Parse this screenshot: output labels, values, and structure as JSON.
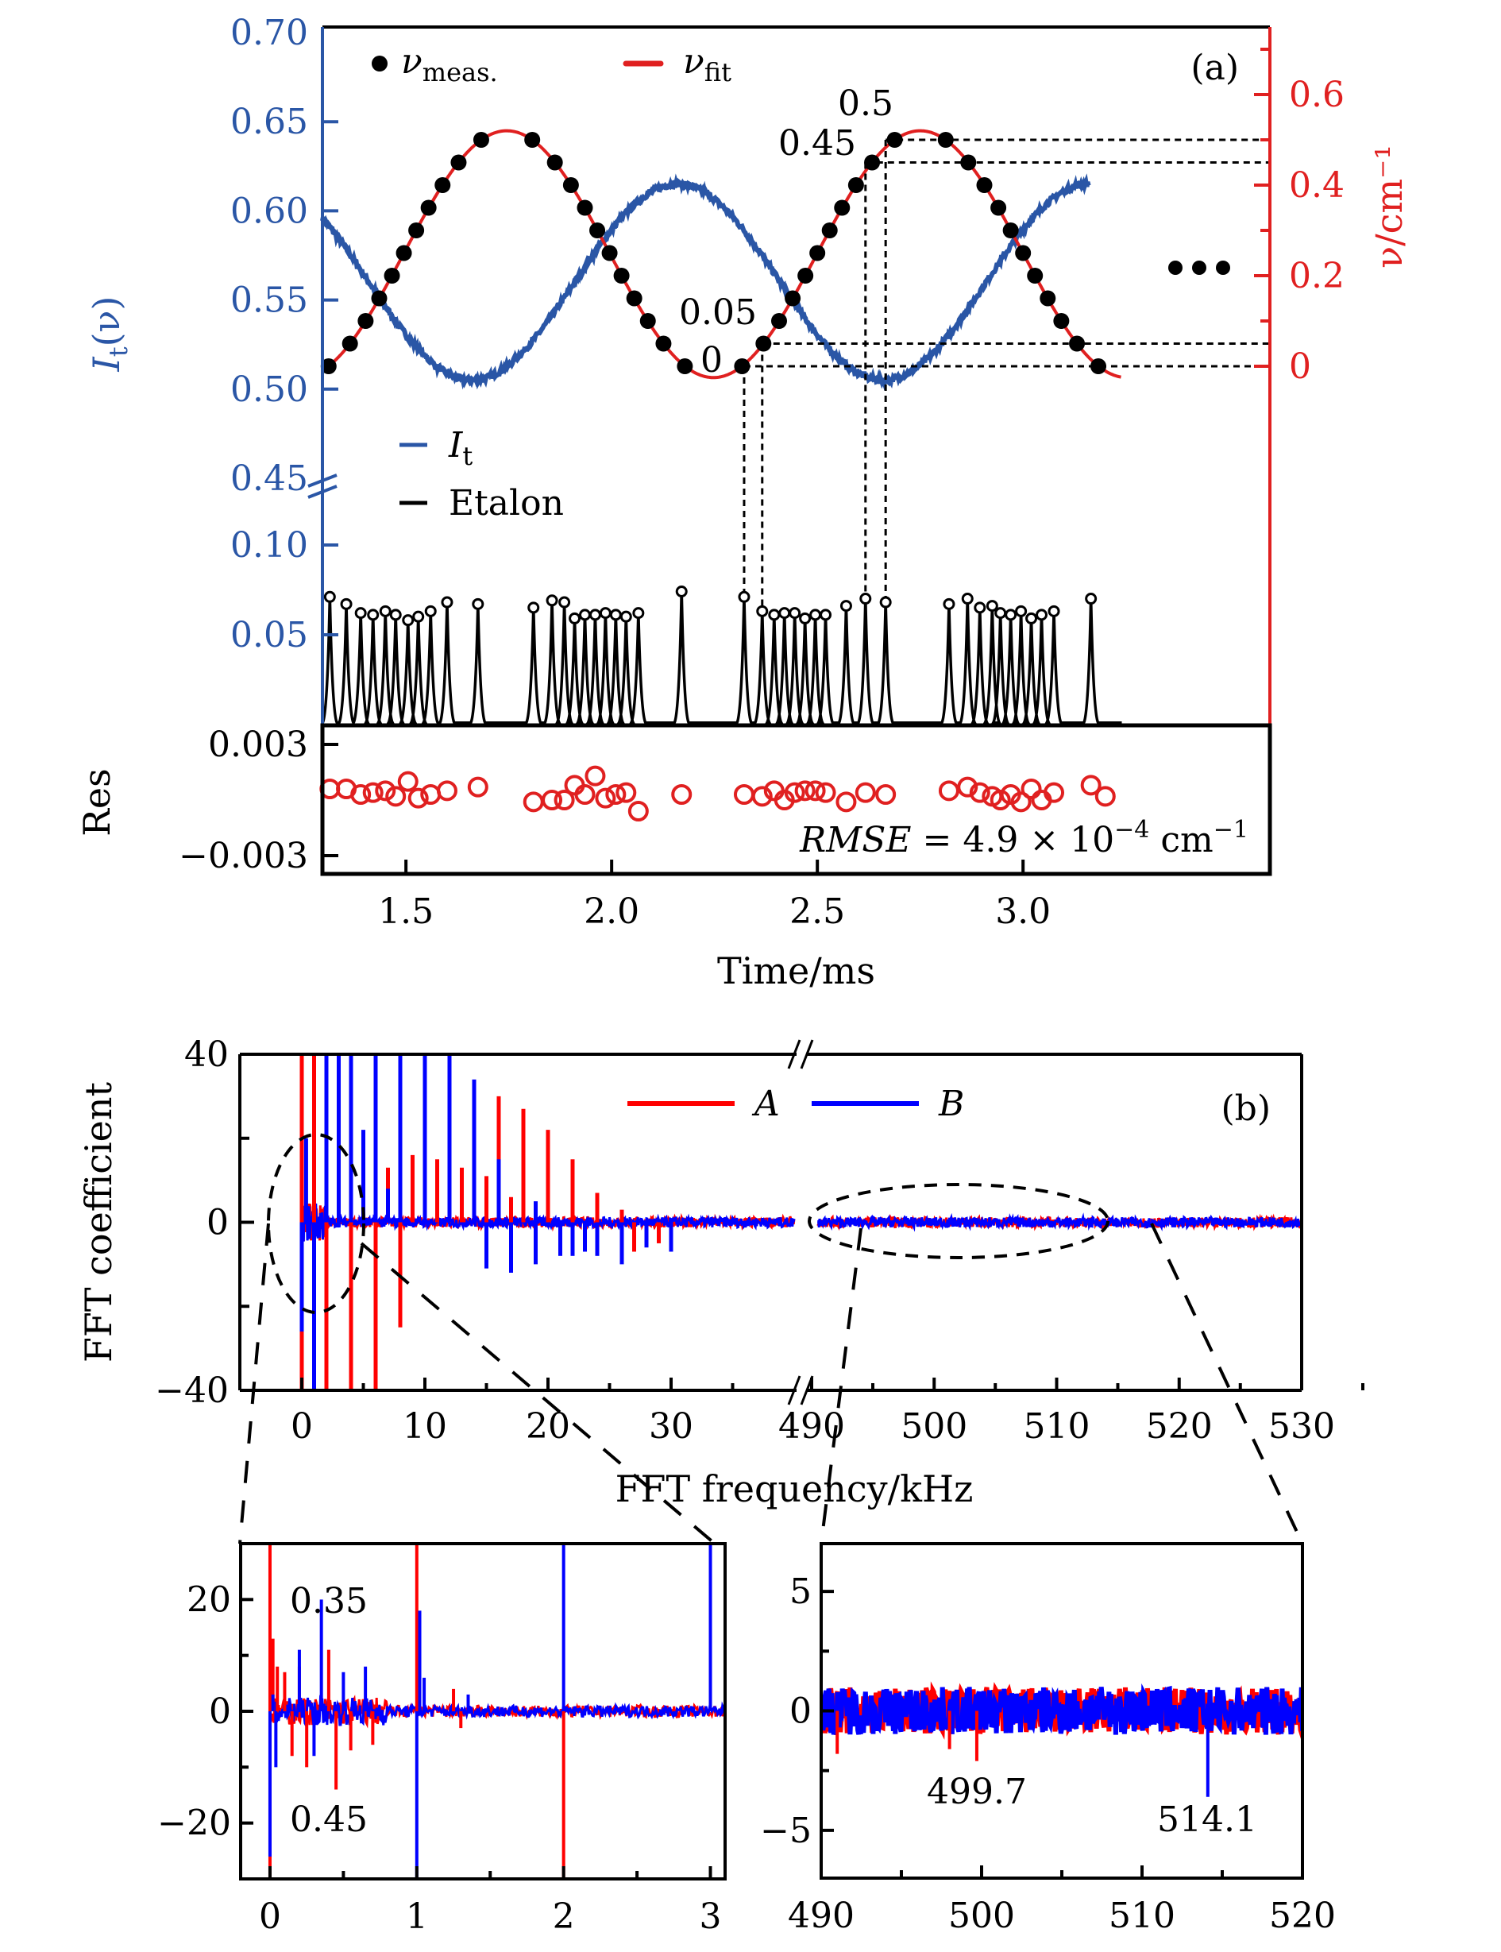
{
  "colors": {
    "intensity_blue": "#2a56a6",
    "fit_red": "#e02020",
    "series_a_red": "#ff0000",
    "series_b_blue": "#0000ff",
    "black": "#000000"
  },
  "chart_data": [
    {
      "id": "panel-a",
      "type": "line",
      "panel_label": "(a)",
      "xlabel": "Time/ms",
      "xlim": [
        1.297,
        3.6
      ],
      "xticks": [
        1.5,
        2.0,
        2.5,
        3.0
      ],
      "xtick_labels": [
        "1.5",
        "2.0",
        "2.5",
        "3.0"
      ],
      "left_axis": {
        "label": "I_t(ν)",
        "label_main": "I",
        "label_sub": "t",
        "label_tail": "(ν)",
        "upper_ylim": [
          0.45,
          0.7
        ],
        "upper_ticks": [
          0.45,
          0.5,
          0.55,
          0.6,
          0.65,
          0.7
        ],
        "upper_tick_labels": [
          "0.45",
          "0.50",
          "0.55",
          "0.60",
          "0.65",
          "0.70"
        ],
        "lower_ylim": [
          0,
          0.12
        ],
        "lower_ticks": [
          0.05,
          0.1
        ],
        "lower_tick_labels": [
          "0.05",
          "0.10"
        ],
        "axis_break_at": 0.45
      },
      "right_axis": {
        "label": "ν/cm⁻¹",
        "ylim": [
          -0.04,
          0.74
        ],
        "ticks": [
          0,
          0.2,
          0.4,
          0.6
        ],
        "minor_ticks": [
          0.1,
          0.3,
          0.5,
          0.7
        ],
        "tick_labels": [
          "0",
          "0.2",
          "0.4",
          "0.6"
        ]
      },
      "legend": [
        {
          "name": "ν_meas.",
          "main": "ν",
          "sub": "meas.",
          "marker": "filled-circle"
        },
        {
          "name": "ν_fit",
          "main": "ν",
          "sub": "fit",
          "marker": "red-line"
        },
        {
          "name": "I_t",
          "main": "I",
          "sub": "t",
          "marker": "blue-line"
        },
        {
          "name": "Etalon",
          "main": "Etalon",
          "sub": "",
          "marker": "black-line"
        }
      ],
      "series": [
        {
          "name": "I_t",
          "description": "transmitted intensity, sinusoidal",
          "x_range": [
            1.297,
            3.16
          ],
          "min_value": 0.505,
          "min_at": [
            1.66,
            2.66
          ],
          "max_value": 0.615,
          "max_at": [
            2.16,
            3.12
          ],
          "start_value": 0.59
        },
        {
          "name": "ν_fit",
          "description": "fitted relative wavenumber, sinusoidal",
          "x_range": [
            1.297,
            3.24
          ],
          "max_value": 0.52,
          "max_at": [
            1.74,
            2.75
          ],
          "min_value": -0.025,
          "min_at": [
            2.25
          ]
        },
        {
          "name": "ν_meas.",
          "description": "measured points at etalon peaks, 0.05 cm-1 spacing",
          "step": 0.05,
          "groups": [
            {
              "t_start": 1.315,
              "t_end": 1.675,
              "nu_start": 0.0,
              "nu_end": 0.5
            },
            {
              "t_start": 1.81,
              "t_end": 2.17,
              "nu_start": 0.5,
              "nu_end": 0.0
            },
            {
              "t_start": 2.322,
              "t_end": 2.666,
              "nu_start": 0.0,
              "nu_end": 0.5
            },
            {
              "t_start": 2.82,
              "t_end": 3.165,
              "nu_start": 0.5,
              "nu_end": 0.0
            }
          ]
        },
        {
          "name": "Etalon",
          "description": "etalon transmission peaks",
          "peaks": [
            {
              "t": 1.315,
              "h": 0.072
            },
            {
              "t": 1.355,
              "h": 0.068
            },
            {
              "t": 1.39,
              "h": 0.063
            },
            {
              "t": 1.42,
              "h": 0.062
            },
            {
              "t": 1.45,
              "h": 0.064
            },
            {
              "t": 1.475,
              "h": 0.062
            },
            {
              "t": 1.505,
              "h": 0.059
            },
            {
              "t": 1.53,
              "h": 0.061
            },
            {
              "t": 1.56,
              "h": 0.064
            },
            {
              "t": 1.6,
              "h": 0.069
            },
            {
              "t": 1.675,
              "h": 0.068
            },
            {
              "t": 1.81,
              "h": 0.066
            },
            {
              "t": 1.855,
              "h": 0.07
            },
            {
              "t": 1.885,
              "h": 0.069
            },
            {
              "t": 1.91,
              "h": 0.06
            },
            {
              "t": 1.935,
              "h": 0.062
            },
            {
              "t": 1.96,
              "h": 0.062
            },
            {
              "t": 1.985,
              "h": 0.063
            },
            {
              "t": 2.01,
              "h": 0.062
            },
            {
              "t": 2.035,
              "h": 0.061
            },
            {
              "t": 2.065,
              "h": 0.063
            },
            {
              "t": 2.17,
              "h": 0.075
            },
            {
              "t": 2.322,
              "h": 0.072
            },
            {
              "t": 2.366,
              "h": 0.064
            },
            {
              "t": 2.395,
              "h": 0.062
            },
            {
              "t": 2.42,
              "h": 0.063
            },
            {
              "t": 2.445,
              "h": 0.063
            },
            {
              "t": 2.47,
              "h": 0.06
            },
            {
              "t": 2.495,
              "h": 0.062
            },
            {
              "t": 2.52,
              "h": 0.062
            },
            {
              "t": 2.57,
              "h": 0.067
            },
            {
              "t": 2.617,
              "h": 0.071
            },
            {
              "t": 2.666,
              "h": 0.069
            },
            {
              "t": 2.82,
              "h": 0.068
            },
            {
              "t": 2.865,
              "h": 0.071
            },
            {
              "t": 2.895,
              "h": 0.066
            },
            {
              "t": 2.925,
              "h": 0.067
            },
            {
              "t": 2.945,
              "h": 0.063
            },
            {
              "t": 2.97,
              "h": 0.062
            },
            {
              "t": 2.995,
              "h": 0.064
            },
            {
              "t": 3.02,
              "h": 0.06
            },
            {
              "t": 3.045,
              "h": 0.062
            },
            {
              "t": 3.075,
              "h": 0.064
            },
            {
              "t": 3.165,
              "h": 0.071
            }
          ]
        }
      ],
      "annotations": [
        {
          "text": "0.5",
          "t": 2.666,
          "nu": 0.5
        },
        {
          "text": "0.45",
          "t": 2.617,
          "nu": 0.45
        },
        {
          "text": "0.05",
          "t": 2.366,
          "nu": 0.05
        },
        {
          "text": "0",
          "t": 2.322,
          "nu": 0.0
        },
        {
          "text": "•••",
          "description": "continuation ellipsis"
        }
      ],
      "guide_lines": {
        "vertical_at_t": [
          2.322,
          2.366,
          2.617,
          2.666
        ],
        "horizontal_at_nu": [
          0.0,
          0.05,
          0.45,
          0.5
        ]
      },
      "residual_panel": {
        "ylabel": "Res",
        "ylim": [
          -0.0035,
          0.0035
        ],
        "ticks": [
          -0.003,
          0.003
        ],
        "tick_labels": [
          "−0.003",
          "0.003"
        ],
        "rmse_text": {
          "lhs": "RMSE",
          "eq": " = 4.9 × 10",
          "exp": "−4",
          "unit": " cm",
          "unit_exp": "−1"
        },
        "values": [
          0.0006,
          0.0006,
          0.0003,
          0.0004,
          0.0005,
          0.0002,
          0.001,
          0.0001,
          0.0003,
          0.0005,
          0.0007,
          -0.0001,
          0.0,
          0.0,
          0.0008,
          0.0003,
          0.0013,
          0.0001,
          0.0003,
          0.0004,
          -0.0006,
          0.0003,
          0.0003,
          0.0002,
          0.0005,
          0.0,
          0.0004,
          0.0005,
          0.0005,
          0.0004,
          -0.0001,
          0.0004,
          0.0003,
          0.0005,
          0.0007,
          0.0004,
          0.0002,
          0.0,
          0.0003,
          -0.0001,
          0.0006,
          0.0,
          0.0004,
          0.0008,
          0.0002
        ]
      }
    },
    {
      "id": "panel-b",
      "type": "line",
      "panel_label": "(b)",
      "xlabel": "FFT frequency/kHz",
      "ylabel": "FFT coefficient",
      "ylim": [
        -40,
        40
      ],
      "yticks": [
        -40,
        0,
        40
      ],
      "ytick_labels": [
        "−40",
        "0",
        "40"
      ],
      "minor_yticks": [
        -20,
        20
      ],
      "x_segments": [
        {
          "xlim": [
            -4,
            40
          ],
          "ticks": [
            0,
            10,
            20,
            30
          ],
          "tick_labels": [
            "0",
            "10",
            "20",
            "30"
          ]
        },
        {
          "xlim": [
            489,
            530
          ],
          "ticks": [
            490,
            500,
            510,
            520,
            530
          ],
          "tick_labels": [
            "490",
            "500",
            "510",
            "520",
            "530"
          ]
        }
      ],
      "legend": [
        {
          "name": "A",
          "color_key": "series_a_red"
        },
        {
          "name": "B",
          "color_key": "series_b_blue"
        }
      ],
      "series": [
        {
          "name": "A",
          "spikes": [
            {
              "f": 0.0,
              "v": 40
            },
            {
              "f": 0.0,
              "v": -40
            },
            {
              "f": 1.0,
              "v": 40
            },
            {
              "f": 2.0,
              "v": -40
            },
            {
              "f": 4.0,
              "v": -40
            },
            {
              "f": 6.0,
              "v": -40
            },
            {
              "f": 7.0,
              "v": 13
            },
            {
              "f": 8.0,
              "v": -25
            },
            {
              "f": 9.0,
              "v": 16
            },
            {
              "f": 11.0,
              "v": 15
            },
            {
              "f": 13.0,
              "v": 13
            },
            {
              "f": 15.0,
              "v": 11
            },
            {
              "f": 16.0,
              "v": 30
            },
            {
              "f": 17.0,
              "v": 6
            },
            {
              "f": 18.0,
              "v": 27
            },
            {
              "f": 20.0,
              "v": 22
            },
            {
              "f": 22.0,
              "v": 15
            },
            {
              "f": 24.0,
              "v": 7
            },
            {
              "f": 26.0,
              "v": 3
            },
            {
              "f": 27.0,
              "v": -7
            },
            {
              "f": 29.0,
              "v": -5
            }
          ]
        },
        {
          "name": "B",
          "spikes": [
            {
              "f": 0.0,
              "v": -26
            },
            {
              "f": 0.35,
              "v": 20
            },
            {
              "f": 1.0,
              "v": -40
            },
            {
              "f": 2.0,
              "v": 40
            },
            {
              "f": 3.0,
              "v": 40
            },
            {
              "f": 4.0,
              "v": 40
            },
            {
              "f": 5.0,
              "v": 22
            },
            {
              "f": 6.0,
              "v": 40
            },
            {
              "f": 7.0,
              "v": 8
            },
            {
              "f": 8.0,
              "v": 40
            },
            {
              "f": 10.0,
              "v": 40
            },
            {
              "f": 12.0,
              "v": 40
            },
            {
              "f": 14.0,
              "v": 34
            },
            {
              "f": 15.0,
              "v": -11
            },
            {
              "f": 16.0,
              "v": 15
            },
            {
              "f": 17.0,
              "v": -12
            },
            {
              "f": 19.0,
              "v": -10
            },
            {
              "f": 19.0,
              "v": 5
            },
            {
              "f": 21.0,
              "v": -8
            },
            {
              "f": 22.0,
              "v": -8
            },
            {
              "f": 23.0,
              "v": -7
            },
            {
              "f": 24.0,
              "v": -8
            },
            {
              "f": 26.0,
              "v": -10
            },
            {
              "f": 28.0,
              "v": -6
            },
            {
              "f": 30.0,
              "v": -7
            }
          ]
        }
      ],
      "noise_amplitude": 1.2,
      "zoom_regions": [
        {
          "f_center": 1.5,
          "v_center": 0,
          "description": "ellipse near 0–5 kHz"
        },
        {
          "f_center": 506,
          "v_center": 0,
          "description": "ellipse near 494–518 kHz"
        }
      ]
    },
    {
      "id": "inset-low",
      "type": "line",
      "xlim": [
        -0.2,
        3.1
      ],
      "ylim": [
        -30,
        30
      ],
      "xticks": [
        0,
        1,
        2,
        3
      ],
      "xtick_labels": [
        "0",
        "1",
        "2",
        "3"
      ],
      "minor_xticks": [
        0.5,
        1.5,
        2.5
      ],
      "yticks": [
        -20,
        0,
        20
      ],
      "ytick_labels": [
        "−20",
        "0",
        "20"
      ],
      "minor_yticks": [
        -10,
        10
      ],
      "annotations": [
        {
          "text": "0.35",
          "f": 0.35,
          "v": 20
        },
        {
          "text": "0.45",
          "f": 0.45,
          "v": -14
        }
      ],
      "series": [
        {
          "name": "A",
          "spikes": [
            {
              "f": 0.0,
              "v": 30
            },
            {
              "f": 0.0,
              "v": -30
            },
            {
              "f": 0.02,
              "v": 13
            },
            {
              "f": 0.05,
              "v": 8
            },
            {
              "f": 0.1,
              "v": 7
            },
            {
              "f": 0.15,
              "v": -8
            },
            {
              "f": 0.2,
              "v": 8
            },
            {
              "f": 0.25,
              "v": -10
            },
            {
              "f": 0.4,
              "v": 11
            },
            {
              "f": 0.45,
              "v": -14
            },
            {
              "f": 0.55,
              "v": -7
            },
            {
              "f": 0.7,
              "v": -6
            },
            {
              "f": 1.0,
              "v": 30
            },
            {
              "f": 1.25,
              "v": 4
            },
            {
              "f": 1.3,
              "v": -3
            },
            {
              "f": 2.0,
              "v": -30
            }
          ]
        },
        {
          "name": "B",
          "spikes": [
            {
              "f": 0.0,
              "v": -26
            },
            {
              "f": 0.02,
              "v": 3
            },
            {
              "f": 0.04,
              "v": -10
            },
            {
              "f": 0.2,
              "v": 11
            },
            {
              "f": 0.3,
              "v": -8
            },
            {
              "f": 0.35,
              "v": 20
            },
            {
              "f": 0.5,
              "v": 7
            },
            {
              "f": 0.65,
              "v": 8
            },
            {
              "f": 1.0,
              "v": -30
            },
            {
              "f": 1.02,
              "v": 18
            },
            {
              "f": 1.05,
              "v": 6
            },
            {
              "f": 1.35,
              "v": 3
            },
            {
              "f": 2.0,
              "v": 30
            },
            {
              "f": 3.0,
              "v": 30
            }
          ]
        }
      ]
    },
    {
      "id": "inset-high",
      "type": "line",
      "xlim": [
        490,
        520
      ],
      "ylim": [
        -7,
        7
      ],
      "xticks": [
        490,
        500,
        510,
        520
      ],
      "xtick_labels": [
        "490",
        "500",
        "510",
        "520"
      ],
      "minor_xticks": [
        495,
        505,
        515
      ],
      "yticks": [
        -5,
        0,
        5
      ],
      "ytick_labels": [
        "−5",
        "0",
        "5"
      ],
      "minor_yticks": [
        -2.5,
        2.5
      ],
      "noise_amplitude": 1.0,
      "annotations": [
        {
          "text": "499.7",
          "f": 499.7,
          "v": -2.1
        },
        {
          "text": "514.1",
          "f": 514.1,
          "v": -3.6
        }
      ],
      "series": [
        {
          "name": "A",
          "spikes": [
            {
              "f": 499.7,
              "v": -2.1
            },
            {
              "f": 491,
              "v": -1.8
            },
            {
              "f": 498,
              "v": -1.6
            }
          ]
        },
        {
          "name": "B",
          "spikes": [
            {
              "f": 514.1,
              "v": -3.6
            }
          ]
        }
      ]
    }
  ]
}
